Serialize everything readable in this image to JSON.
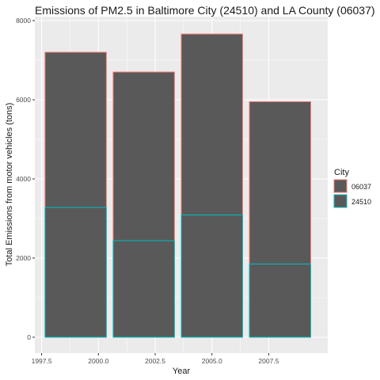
{
  "chart_data": {
    "type": "bar",
    "title": "Emissions of PM2.5 in Baltimore City (24510) and LA County (06037)",
    "xlabel": "Year",
    "ylabel": "Total Emissions from motor vehicles (tons)",
    "x": [
      1999,
      2002,
      2005,
      2008
    ],
    "series": [
      {
        "name": "06037",
        "values": [
          7200,
          6700,
          7660,
          5950
        ],
        "color": "#F8766D"
      },
      {
        "name": "24510",
        "values": [
          3280,
          2440,
          3090,
          1850
        ],
        "color": "#00BFC4"
      }
    ],
    "bar_fill": "#595959",
    "bar_width_years": 2.7,
    "xlim": [
      1997.2,
      2010.1
    ],
    "ylim": [
      -400,
      8100
    ],
    "x_ticks": [
      1997.5,
      2000.0,
      2002.5,
      2005.0,
      2007.5
    ],
    "x_tick_labels": [
      "1997.5",
      "2000.0",
      "2002.5",
      "2005.0",
      "2007.5"
    ],
    "y_ticks": [
      0,
      2000,
      4000,
      6000,
      8000
    ],
    "y_tick_labels": [
      "0",
      "2000",
      "4000",
      "6000",
      "8000"
    ],
    "grid": true,
    "panel_background": "#EBEBEB",
    "legend": {
      "title": "City",
      "position": "right"
    }
  }
}
